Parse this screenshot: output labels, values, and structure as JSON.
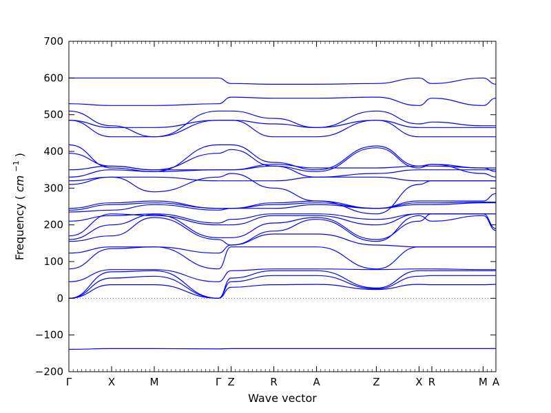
{
  "chart_data": {
    "type": "line",
    "title": "",
    "xlabel": "Wave vector",
    "ylabel": "Frequency",
    "ylabel_unit_symbol": "cm",
    "ylabel_unit_exponent": "−1",
    "ylim": [
      -200,
      700
    ],
    "yticks": [
      -200,
      -100,
      0,
      100,
      200,
      300,
      400,
      500,
      600,
      700
    ],
    "ytick_labels": [
      "−200",
      "−100",
      "0",
      "100",
      "200",
      "300",
      "400",
      "500",
      "600",
      "700"
    ],
    "xlim": [
      0,
      10.0
    ],
    "kpoint_labels": [
      "Γ",
      "X",
      "M",
      "Γ",
      "Z",
      "R",
      "A",
      "Z",
      "X",
      "R",
      "M",
      "A"
    ],
    "kpoint_positions": [
      0.0,
      1.0,
      2.0,
      3.5,
      3.8,
      4.8,
      5.8,
      7.2,
      8.2,
      8.5,
      9.7,
      10.0
    ],
    "zero_line": true,
    "line_color": "#0000ff",
    "zero_line_color": "#5b5bd6",
    "bands": [
      [
        -139,
        -137,
        -137,
        -138,
        -137,
        -137,
        -137,
        -137,
        -137,
        -137,
        -137,
        -137
      ],
      [
        0,
        37,
        37,
        0,
        30,
        37,
        38,
        24,
        38,
        37,
        37,
        38
      ],
      [
        0,
        55,
        60,
        0,
        45,
        62,
        62,
        26,
        60,
        62,
        62,
        62
      ],
      [
        0,
        72,
        75,
        0,
        55,
        75,
        75,
        28,
        75,
        75,
        75,
        75
      ],
      [
        45,
        78,
        78,
        45,
        75,
        80,
        80,
        78,
        80,
        80,
        78,
        78
      ],
      [
        80,
        135,
        140,
        80,
        140,
        140,
        140,
        80,
        140,
        140,
        140,
        140
      ],
      [
        123,
        140,
        140,
        123,
        145,
        175,
        175,
        145,
        140,
        140,
        140,
        140
      ],
      [
        155,
        170,
        220,
        160,
        145,
        183,
        215,
        155,
        225,
        210,
        225,
        185
      ],
      [
        160,
        200,
        228,
        165,
        165,
        205,
        220,
        160,
        210,
        230,
        230,
        190
      ],
      [
        170,
        230,
        225,
        200,
        200,
        225,
        225,
        200,
        230,
        230,
        230,
        230
      ],
      [
        210,
        225,
        230,
        205,
        215,
        230,
        230,
        215,
        230,
        230,
        230,
        230
      ],
      [
        235,
        240,
        255,
        240,
        245,
        245,
        255,
        245,
        255,
        255,
        260,
        260
      ],
      [
        240,
        255,
        260,
        245,
        245,
        255,
        260,
        245,
        260,
        260,
        262,
        262
      ],
      [
        245,
        260,
        265,
        245,
        245,
        260,
        265,
        245,
        265,
        265,
        265,
        285
      ],
      [
        310,
        330,
        290,
        330,
        340,
        300,
        265,
        230,
        310,
        320,
        320,
        320
      ],
      [
        320,
        330,
        330,
        320,
        320,
        320,
        330,
        330,
        320,
        320,
        320,
        320
      ],
      [
        330,
        350,
        345,
        350,
        350,
        360,
        330,
        340,
        350,
        350,
        350,
        350
      ],
      [
        350,
        360,
        350,
        350,
        350,
        365,
        355,
        355,
        360,
        360,
        355,
        355
      ],
      [
        395,
        360,
        350,
        395,
        405,
        360,
        345,
        410,
        355,
        365,
        355,
        345
      ],
      [
        418,
        355,
        345,
        418,
        418,
        370,
        350,
        415,
        360,
        365,
        340,
        330
      ],
      [
        485,
        440,
        440,
        485,
        485,
        440,
        440,
        485,
        440,
        440,
        440,
        440
      ],
      [
        485,
        465,
        465,
        485,
        485,
        475,
        465,
        485,
        465,
        465,
        465,
        465
      ],
      [
        510,
        470,
        440,
        510,
        510,
        490,
        465,
        510,
        475,
        480,
        470,
        470
      ],
      [
        530,
        525,
        525,
        530,
        548,
        545,
        545,
        548,
        525,
        545,
        525,
        545
      ],
      [
        600,
        600,
        600,
        600,
        585,
        583,
        583,
        585,
        600,
        585,
        600,
        583
      ]
    ]
  }
}
